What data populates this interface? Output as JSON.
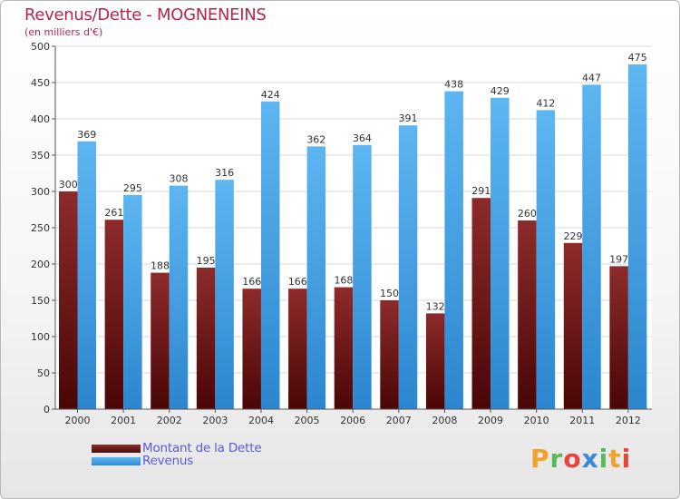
{
  "title": "Revenus/Dette - MOGNENEINS",
  "subtitle": "(en milliers d'€)",
  "logo": "Proxiti",
  "colors": {
    "dette": "#7a1a1a",
    "revenus": "#49a6e9",
    "title": "#b5264f",
    "legend_text": "#5a5ad8"
  },
  "chart_data": {
    "type": "bar",
    "title": "Revenus/Dette - MOGNENEINS",
    "ylabel": "(en milliers d'€)",
    "xlabel": "",
    "ylim": [
      0,
      500
    ],
    "yticks": [
      0,
      50,
      100,
      150,
      200,
      250,
      300,
      350,
      400,
      450,
      500
    ],
    "grid": true,
    "legend_position": "bottom-left",
    "categories": [
      "2000",
      "2001",
      "2002",
      "2003",
      "2004",
      "2005",
      "2006",
      "2007",
      "2008",
      "2009",
      "2010",
      "2011",
      "2012"
    ],
    "series": [
      {
        "name": "Montant de la Dette",
        "values": [
          300,
          261,
          188,
          195,
          166,
          166,
          168,
          150,
          132,
          291,
          260,
          229,
          197
        ]
      },
      {
        "name": "Revenus",
        "values": [
          369,
          295,
          308,
          316,
          424,
          362,
          364,
          391,
          438,
          429,
          412,
          447,
          475
        ]
      }
    ]
  }
}
